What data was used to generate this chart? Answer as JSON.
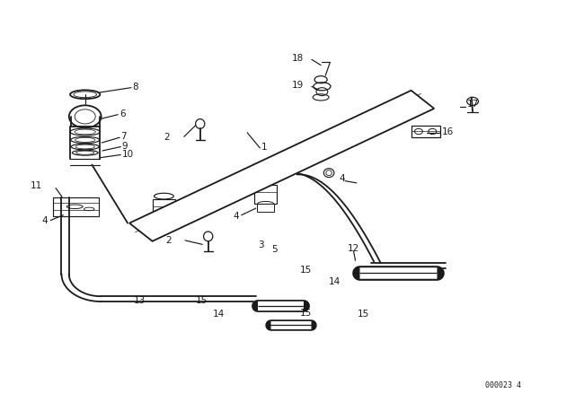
{
  "bg_color": "#ffffff",
  "line_color": "#1a1a1a",
  "text_color": "#1a1a1a",
  "diagram_code": "000023 4"
}
